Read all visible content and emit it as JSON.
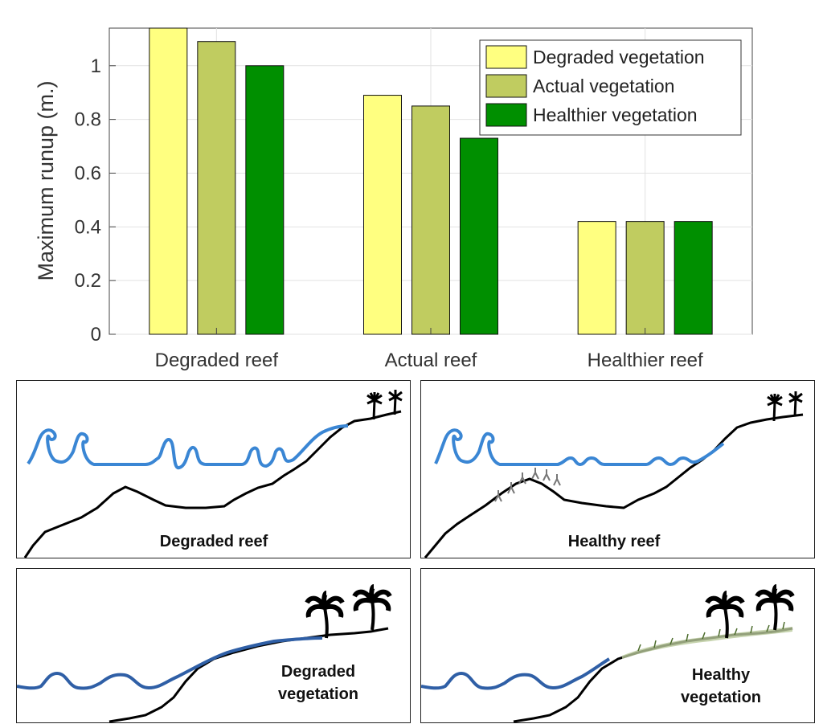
{
  "chart_data": {
    "type": "bar",
    "categories": [
      "Degraded reef",
      "Actual reef",
      "Healthier reef"
    ],
    "ylabel": "Maximum runup (m.)",
    "xlabel": "",
    "ylim": [
      0,
      1.14
    ],
    "yticks": [
      "0",
      "0.2",
      "0.4",
      "0.6",
      "0.8",
      "1"
    ],
    "grid": true,
    "legend_position": "top-right",
    "series": [
      {
        "name": "Degraded vegetation",
        "color": "#ffff80",
        "values": [
          1.15,
          0.89,
          0.42
        ]
      },
      {
        "name": "Actual vegetation",
        "color": "#c0cc60",
        "values": [
          1.09,
          0.85,
          0.42
        ]
      },
      {
        "name": "Healthier vegetation",
        "color": "#008f00",
        "values": [
          1.0,
          0.73,
          0.42
        ]
      }
    ]
  },
  "panels": {
    "degraded_reef": {
      "label": "Degraded reef"
    },
    "healthy_reef": {
      "label": "Healthy reef"
    },
    "degraded_vegetation": {
      "label_line1": "Degraded",
      "label_line2": "vegetation"
    },
    "healthy_vegetation": {
      "label_line1": "Healthy",
      "label_line2": "vegetation"
    }
  }
}
